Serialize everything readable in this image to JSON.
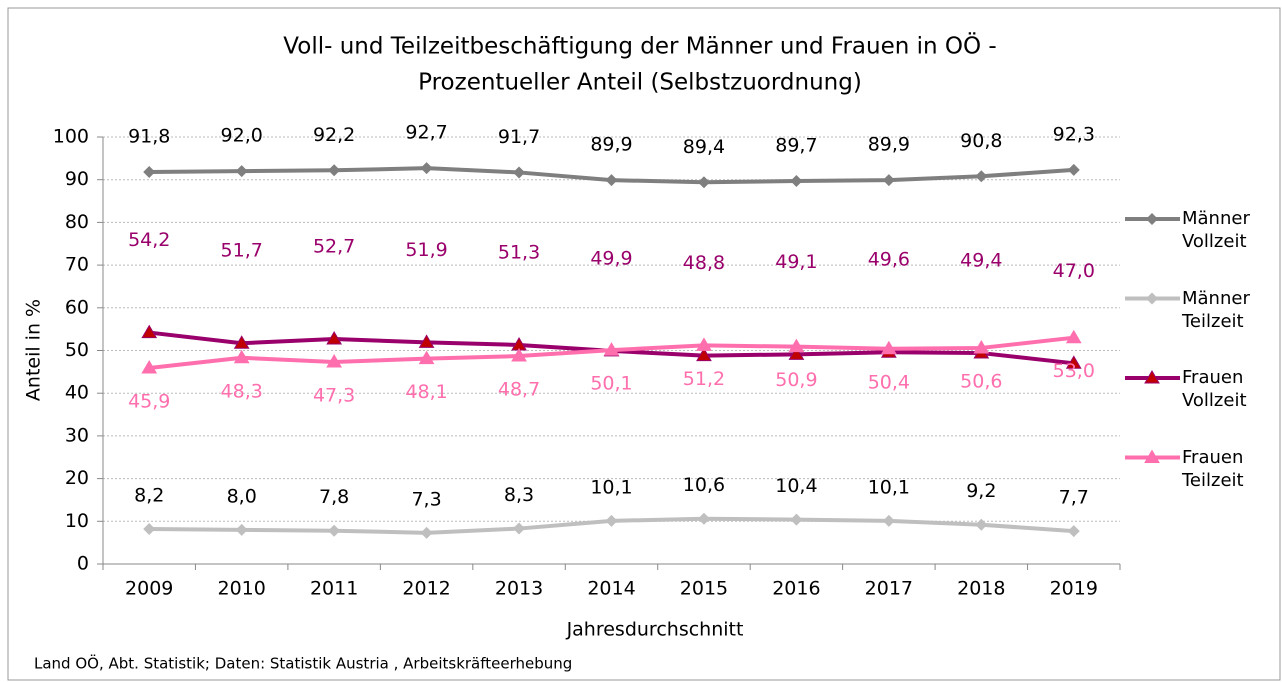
{
  "chart_data": {
    "type": "line",
    "title": "Voll- und Teilzeitbeschäftigung der Männer und Frauen in OÖ -",
    "subtitle": "Prozentueller Anteil (Selbstzuordnung)",
    "x_label": "Jahresdurchschnitt",
    "y_label": "Anteil in %",
    "source": "Land OÖ, Abt. Statistik; Daten: Statistik Austria , Arbeitskräfteerhebung",
    "categories": [
      "2009",
      "2010",
      "2011",
      "2012",
      "2013",
      "2014",
      "2015",
      "2016",
      "2017",
      "2018",
      "2019"
    ],
    "ylim": [
      0,
      100
    ],
    "yticks": [
      0,
      10,
      20,
      30,
      40,
      50,
      60,
      70,
      80,
      90,
      100
    ],
    "grid": true,
    "legend": "right",
    "series": [
      {
        "name": "Männer Vollzeit",
        "color": "#7f7f7f",
        "marker": "diamond",
        "label_color": "#000000",
        "values": [
          91.8,
          92.0,
          92.2,
          92.7,
          91.7,
          89.9,
          89.4,
          89.7,
          89.9,
          90.8,
          92.3
        ],
        "value_labels": [
          "91,8",
          "92,0",
          "92,2",
          "92,7",
          "91,7",
          "89,9",
          "89,4",
          "89,7",
          "89,9",
          "90,8",
          "92,3"
        ]
      },
      {
        "name": "Männer Teilzeit",
        "color": "#bfbfbf",
        "marker": "diamond",
        "label_color": "#000000",
        "values": [
          8.2,
          8.0,
          7.8,
          7.3,
          8.3,
          10.1,
          10.6,
          10.4,
          10.1,
          9.2,
          7.7
        ],
        "value_labels": [
          "8,2",
          "8,0",
          "7,8",
          "7,3",
          "8,3",
          "10,1",
          "10,6",
          "10,4",
          "10,1",
          "9,2",
          "7,7"
        ]
      },
      {
        "name": "Frauen Vollzeit",
        "color": "#99006b",
        "marker": "triangle",
        "marker_color": "#c00000",
        "label_color": "#99006b",
        "values": [
          54.2,
          51.7,
          52.7,
          51.9,
          51.3,
          49.9,
          48.8,
          49.1,
          49.6,
          49.4,
          47.0
        ],
        "value_labels": [
          "54,2",
          "51,7",
          "52,7",
          "51,9",
          "51,3",
          "49,9",
          "48,8",
          "49,1",
          "49,6",
          "49,4",
          "47,0"
        ]
      },
      {
        "name": "Frauen Teilzeit",
        "color": "#ff6fae",
        "marker": "triangle",
        "label_color": "#ff6fae",
        "values": [
          45.9,
          48.3,
          47.3,
          48.1,
          48.7,
          50.1,
          51.2,
          50.9,
          50.4,
          50.6,
          53.0
        ],
        "value_labels": [
          "45,9",
          "48,3",
          "47,3",
          "48,1",
          "48,7",
          "50,1",
          "51,2",
          "50,9",
          "50,4",
          "50,6",
          "53,0"
        ]
      }
    ]
  }
}
